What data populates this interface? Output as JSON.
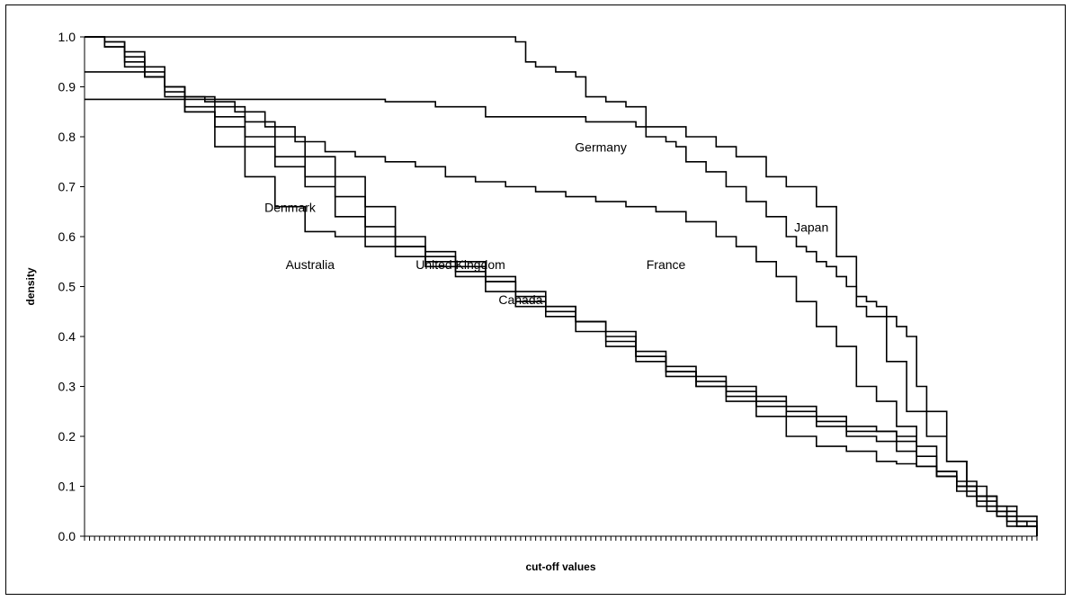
{
  "chart_data": {
    "type": "line",
    "title": "",
    "xlabel": "cut-off values",
    "ylabel": "density",
    "x_range": [
      0,
      190
    ],
    "ylim": [
      0,
      1
    ],
    "y_ticks": [
      "0.0",
      "0.1",
      "0.2",
      "0.3",
      "0.4",
      "0.5",
      "0.6",
      "0.7",
      "0.8",
      "0.9",
      "1.0"
    ],
    "x_tick_count": 191,
    "x_tick_labels_shown": false,
    "grid": false,
    "legend": "none",
    "line_color": "#000000",
    "annotations": [
      {
        "text": "Germany",
        "x": 103,
        "y": 0.77
      },
      {
        "text": "Japan",
        "x": 145,
        "y": 0.61
      },
      {
        "text": "Denmark",
        "x": 41,
        "y": 0.65
      },
      {
        "text": "Australia",
        "x": 45,
        "y": 0.535
      },
      {
        "text": "United Kingdom",
        "x": 75,
        "y": 0.535
      },
      {
        "text": "France",
        "x": 116,
        "y": 0.535
      },
      {
        "text": "Canada",
        "x": 87,
        "y": 0.465
      }
    ],
    "series": [
      {
        "x": [
          0,
          6,
          12,
          24,
          36,
          48,
          60,
          72,
          80,
          84,
          86,
          88,
          90,
          94,
          98,
          100,
          104,
          108,
          112,
          116,
          118,
          120,
          124,
          128,
          132,
          136,
          140,
          142,
          144,
          146,
          148,
          150,
          152,
          154,
          156,
          158,
          160,
          162,
          164,
          166,
          168,
          172,
          176,
          180,
          184,
          188,
          190
        ],
        "values": [
          1.0,
          1.0,
          1.0,
          1.0,
          1.0,
          1.0,
          1.0,
          1.0,
          1.0,
          1.0,
          0.99,
          0.95,
          0.94,
          0.93,
          0.92,
          0.88,
          0.87,
          0.86,
          0.8,
          0.79,
          0.78,
          0.75,
          0.73,
          0.7,
          0.67,
          0.64,
          0.6,
          0.58,
          0.57,
          0.55,
          0.54,
          0.52,
          0.5,
          0.48,
          0.47,
          0.46,
          0.44,
          0.42,
          0.4,
          0.3,
          0.25,
          0.15,
          0.08,
          0.06,
          0.03,
          0.02,
          0.0
        ]
      },
      {
        "x": [
          0,
          6,
          10,
          14,
          20,
          30,
          40,
          50,
          60,
          70,
          80,
          90,
          100,
          110,
          120,
          126,
          130,
          136,
          140,
          146,
          150,
          154,
          156,
          160,
          164,
          168,
          172,
          176,
          180,
          184,
          190
        ],
        "values": [
          0.875,
          0.875,
          0.875,
          0.875,
          0.875,
          0.875,
          0.875,
          0.875,
          0.87,
          0.86,
          0.84,
          0.84,
          0.83,
          0.82,
          0.8,
          0.78,
          0.76,
          0.72,
          0.7,
          0.66,
          0.56,
          0.46,
          0.44,
          0.35,
          0.25,
          0.2,
          0.15,
          0.1,
          0.05,
          0.02,
          0.0
        ]
      },
      {
        "x": [
          0,
          4,
          8,
          12,
          16,
          20,
          24,
          30,
          36,
          42,
          48,
          54,
          60,
          66,
          72,
          78,
          84,
          90,
          96,
          102,
          108,
          114,
          120,
          126,
          130,
          134,
          138,
          142,
          146,
          150,
          154,
          158,
          162,
          166,
          170,
          174,
          178,
          182,
          186,
          190
        ],
        "values": [
          0.93,
          0.93,
          0.93,
          0.92,
          0.9,
          0.88,
          0.87,
          0.85,
          0.82,
          0.79,
          0.77,
          0.76,
          0.75,
          0.74,
          0.72,
          0.71,
          0.7,
          0.69,
          0.68,
          0.67,
          0.66,
          0.65,
          0.63,
          0.6,
          0.58,
          0.55,
          0.52,
          0.47,
          0.42,
          0.38,
          0.3,
          0.27,
          0.22,
          0.18,
          0.13,
          0.09,
          0.06,
          0.04,
          0.02,
          0.0
        ]
      },
      {
        "x": [
          0,
          4,
          8,
          12,
          16,
          20,
          26,
          32,
          38,
          44,
          50,
          56,
          62,
          68,
          74,
          80,
          86,
          92,
          98,
          104,
          110,
          116,
          122,
          128,
          134,
          140,
          146,
          152,
          158,
          162,
          166,
          170,
          174,
          178,
          182,
          186,
          190
        ],
        "values": [
          1.0,
          0.99,
          0.97,
          0.94,
          0.9,
          0.85,
          0.78,
          0.72,
          0.66,
          0.61,
          0.6,
          0.58,
          0.58,
          0.55,
          0.53,
          0.51,
          0.49,
          0.46,
          0.43,
          0.41,
          0.37,
          0.32,
          0.3,
          0.27,
          0.24,
          0.2,
          0.18,
          0.17,
          0.15,
          0.145,
          0.14,
          0.12,
          0.1,
          0.07,
          0.04,
          0.02,
          0.0
        ]
      },
      {
        "x": [
          0,
          4,
          8,
          12,
          16,
          20,
          26,
          32,
          38,
          44,
          50,
          56,
          62,
          68,
          74,
          80,
          86,
          92,
          98,
          104,
          110,
          116,
          122,
          128,
          134,
          140,
          146,
          152,
          158,
          162,
          166,
          170,
          174,
          178,
          182,
          186,
          190
        ],
        "values": [
          1.0,
          0.98,
          0.95,
          0.92,
          0.89,
          0.85,
          0.82,
          0.78,
          0.74,
          0.7,
          0.64,
          0.6,
          0.56,
          0.54,
          0.52,
          0.49,
          0.46,
          0.44,
          0.41,
          0.38,
          0.35,
          0.33,
          0.3,
          0.28,
          0.26,
          0.24,
          0.22,
          0.2,
          0.19,
          0.17,
          0.14,
          0.12,
          0.1,
          0.08,
          0.05,
          0.02,
          0.0
        ]
      },
      {
        "x": [
          0,
          4,
          8,
          12,
          16,
          20,
          26,
          32,
          38,
          44,
          50,
          56,
          62,
          68,
          74,
          80,
          86,
          92,
          98,
          104,
          110,
          116,
          122,
          128,
          134,
          140,
          146,
          152,
          158,
          162,
          166,
          170,
          174,
          178,
          182,
          186,
          190
        ],
        "values": [
          1.0,
          0.99,
          0.96,
          0.93,
          0.88,
          0.86,
          0.84,
          0.8,
          0.76,
          0.72,
          0.68,
          0.62,
          0.58,
          0.56,
          0.54,
          0.51,
          0.47,
          0.45,
          0.43,
          0.4,
          0.36,
          0.34,
          0.32,
          0.3,
          0.28,
          0.26,
          0.24,
          0.22,
          0.21,
          0.19,
          0.16,
          0.13,
          0.11,
          0.08,
          0.05,
          0.03,
          0.0
        ]
      },
      {
        "x": [
          0,
          4,
          8,
          12,
          16,
          20,
          26,
          32,
          38,
          44,
          50,
          56,
          62,
          68,
          74,
          80,
          86,
          92,
          98,
          104,
          110,
          116,
          122,
          128,
          134,
          140,
          146,
          152,
          158,
          162,
          166,
          170,
          174,
          178,
          182,
          186,
          190
        ],
        "values": [
          1.0,
          0.98,
          0.94,
          0.92,
          0.9,
          0.88,
          0.86,
          0.83,
          0.8,
          0.76,
          0.72,
          0.66,
          0.6,
          0.57,
          0.55,
          0.52,
          0.48,
          0.46,
          0.43,
          0.39,
          0.36,
          0.33,
          0.31,
          0.29,
          0.27,
          0.25,
          0.23,
          0.21,
          0.21,
          0.2,
          0.14,
          0.12,
          0.1,
          0.08,
          0.06,
          0.04,
          0.0
        ]
      }
    ]
  }
}
